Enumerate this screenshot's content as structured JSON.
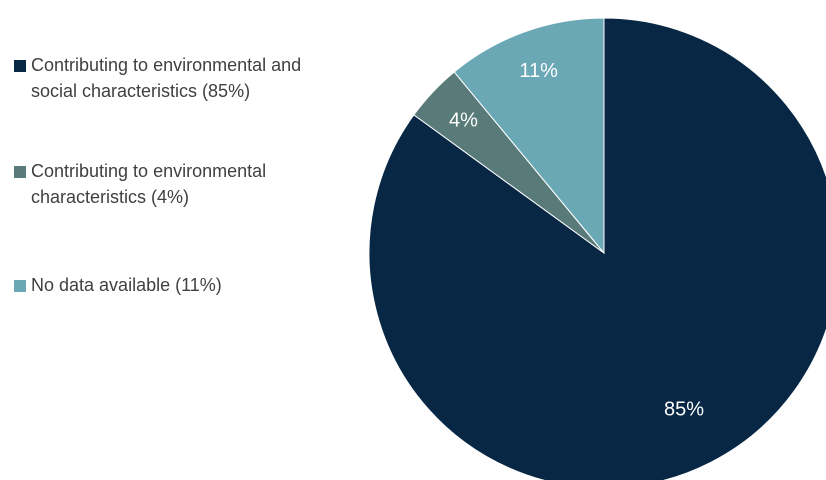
{
  "chart_data": {
    "type": "pie",
    "title": "",
    "legend_position": "left",
    "start_angle_deg": 0,
    "direction": "clockwise",
    "slices": [
      {
        "name": "Contributing to environmental and social characteristics (85%)",
        "value": 85,
        "label": "85%",
        "color": "#072744"
      },
      {
        "name": "Contributing to environmental characteristics (4%)",
        "value": 4,
        "label": "4%",
        "color": "#587a78"
      },
      {
        "name": "No data available (11%)",
        "value": 11,
        "label": "11%",
        "color": "#6aa8b6"
      }
    ]
  }
}
